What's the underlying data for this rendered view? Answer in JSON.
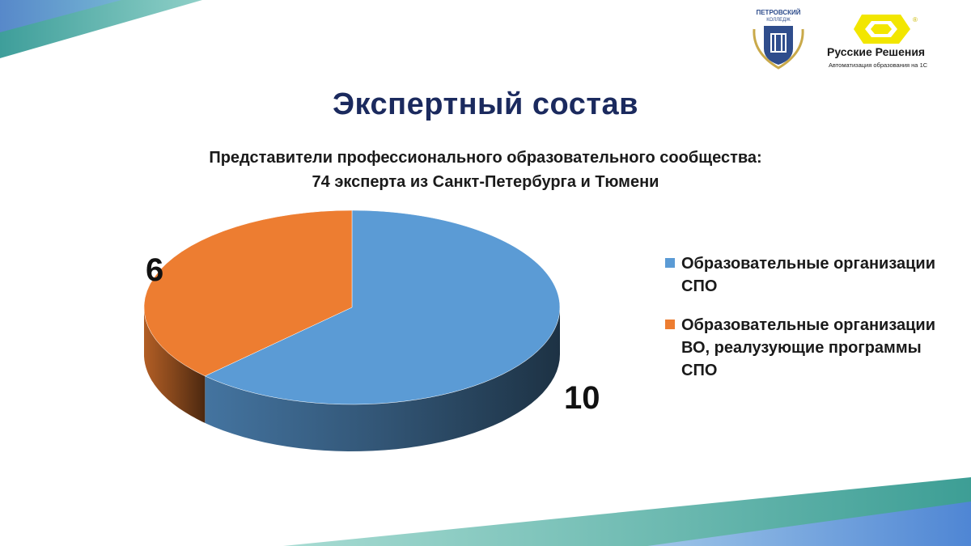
{
  "title": "Экспертный состав",
  "subtitle": {
    "line1": "Представители профессионального образовательного сообщества:",
    "line2": "74 эксперта из Санкт-Петербурга и Тюмени"
  },
  "logos": {
    "college": {
      "name_line1": "ПЕТРОВСКИЙ",
      "name_line2": "КОЛЛЕДЖ"
    },
    "russkie_resheniya": {
      "name": "Русские Решения",
      "tagline": "Автоматизация образования на 1С",
      "registered_mark": "®",
      "brand_color": "#f2e600"
    }
  },
  "chart_data": {
    "type": "pie",
    "style": "3d",
    "categories": [
      "Образовательные организации СПО",
      "Образовательные организации ВО, реалузующие программы СПО"
    ],
    "values": [
      10,
      6
    ],
    "colors": [
      "#5b9bd5",
      "#ed7d31"
    ],
    "data_labels": [
      "10",
      "6"
    ],
    "legend_position": "right"
  },
  "legend": [
    {
      "label": "Образовательные организации СПО",
      "color": "#5b9bd5"
    },
    {
      "label": "Образовательные организации ВО, реалузующие программы СПО",
      "color": "#ed7d31"
    }
  ],
  "colors": {
    "title": "#1b2a5e",
    "accent_teal": "#3fa7a0",
    "accent_blue": "#4d8fd6"
  }
}
